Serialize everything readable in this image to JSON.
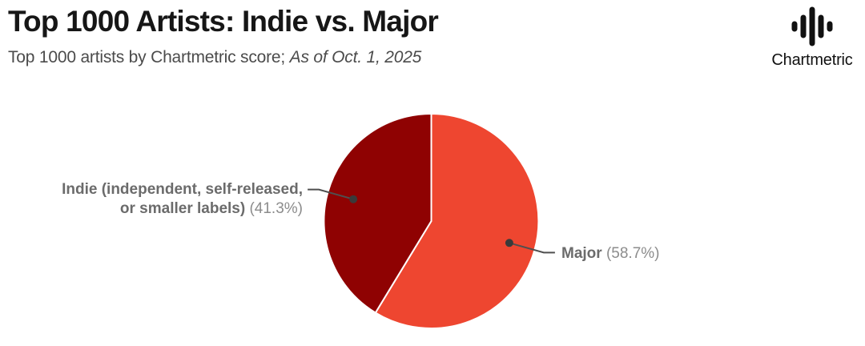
{
  "header": {
    "title": "Top 1000 Artists: Indie vs. Major",
    "subtitle_plain": "Top 1000 artists by Chartmetric score; ",
    "subtitle_italic": "As of Oct. 1, 2025"
  },
  "logo": {
    "text": "Chartmetric",
    "icon": "waveform-icon"
  },
  "colors": {
    "background": "#FFFFFF",
    "title_text": "#161616",
    "subtitle_text": "#4B4B4B",
    "label_text": "#6B6B6B",
    "pct_text": "#8C8C8C",
    "leader_line": "#4F4F4F",
    "callout_dot": "#3A3A3A",
    "logo_text": "#111111",
    "major_slice": "#EE4630",
    "indie_slice": "#8F0202"
  },
  "chart_data": {
    "type": "pie",
    "title": "Top 1000 Artists: Indie vs. Major",
    "subtitle": "Top 1000 artists by Chartmetric score; As of Oct. 1, 2025",
    "start_angle_deg": 0,
    "direction": "clockwise",
    "total_pct": 100,
    "legend_position": "callout-labels",
    "slices": [
      {
        "name": "Major",
        "value_pct": 58.7,
        "color": "#EE4630",
        "label_lines": [
          "Major"
        ],
        "pct_label": "(58.7%)"
      },
      {
        "name": "Indie",
        "value_pct": 41.3,
        "color": "#8F0202",
        "label_lines": [
          "Indie (independent, self-released,",
          "or smaller labels)"
        ],
        "pct_label": "(41.3%)"
      }
    ]
  }
}
